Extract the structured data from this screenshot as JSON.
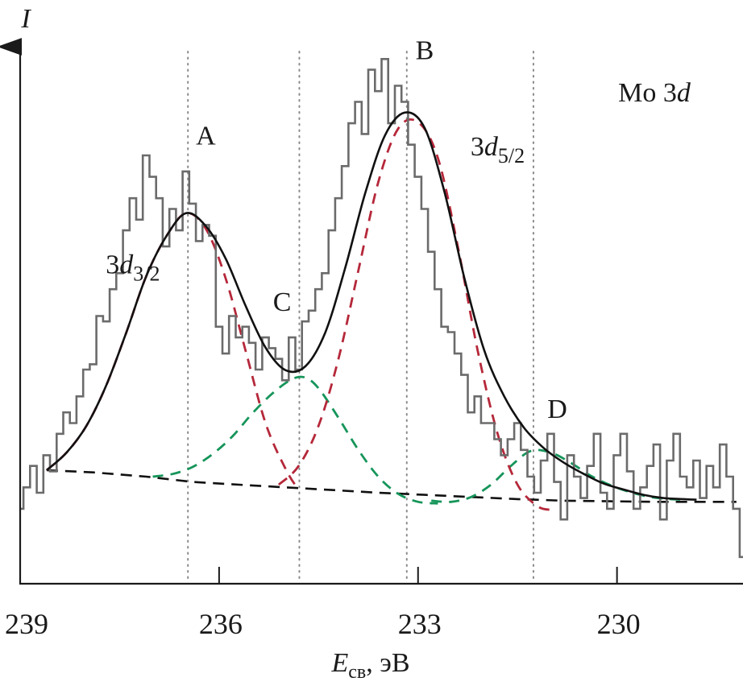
{
  "chart_data": {
    "type": "line",
    "title": "Mo 3d",
    "xlabel_main": "E",
    "xlabel_sub": "св",
    "xlabel_unit": ", эВ",
    "ylabel": "I",
    "xlim": [
      239,
      228.1
    ],
    "x_reversed": true,
    "ylim": [
      0,
      100
    ],
    "y_ticks_shown": false,
    "grid": false,
    "x_ticks": [
      239,
      236,
      233,
      230
    ],
    "x_tick_labels": [
      "239",
      "236",
      "233",
      "230"
    ],
    "colors": {
      "experimental": "#6b6b6b",
      "envelope": "#111111",
      "mo_component": "#b5283a",
      "second_component": "#16955a",
      "background": "#111111",
      "marker_line": "#8a8a8a"
    },
    "reference_lines": [
      {
        "x": 236.47,
        "label": "A"
      },
      {
        "x": 234.79,
        "label": "C"
      },
      {
        "x": 233.17,
        "label": "B"
      },
      {
        "x": 231.26,
        "label": "D"
      }
    ],
    "annotations": [
      {
        "text": "A",
        "x": 236.2,
        "y": 82
      },
      {
        "text": "B",
        "x": 232.9,
        "y": 98
      },
      {
        "text": "C",
        "x": 235.05,
        "y": 51
      },
      {
        "text": "D",
        "x": 230.9,
        "y": 31
      },
      {
        "text": "3d",
        "sub": "3/2",
        "x": 237.3,
        "y": 58
      },
      {
        "text": "3d",
        "sub": "5/2",
        "x": 231.8,
        "y": 80
      }
    ],
    "series": [
      {
        "name": "experimental",
        "style": "step",
        "x": [
          239.0,
          238.9,
          238.8,
          238.7,
          238.6,
          238.5,
          238.4,
          238.3,
          238.2,
          238.1,
          238.0,
          237.9,
          237.8,
          237.7,
          237.6,
          237.5,
          237.4,
          237.3,
          237.2,
          237.1,
          237.0,
          236.9,
          236.8,
          236.7,
          236.6,
          236.5,
          236.4,
          236.3,
          236.2,
          236.1,
          236.0,
          235.9,
          235.8,
          235.7,
          235.6,
          235.5,
          235.4,
          235.3,
          235.2,
          235.1,
          235.0,
          234.9,
          234.8,
          234.7,
          234.6,
          234.5,
          234.4,
          234.3,
          234.2,
          234.1,
          234.0,
          233.9,
          233.8,
          233.7,
          233.6,
          233.5,
          233.4,
          233.3,
          233.2,
          233.1,
          233.0,
          232.9,
          232.8,
          232.7,
          232.6,
          232.5,
          232.4,
          232.3,
          232.2,
          232.1,
          232.0,
          231.9,
          231.8,
          231.7,
          231.6,
          231.5,
          231.4,
          231.3,
          231.2,
          231.1,
          231.0,
          230.9,
          230.8,
          230.7,
          230.6,
          230.5,
          230.4,
          230.3,
          230.2,
          230.1,
          230.0,
          229.9,
          229.8,
          229.7,
          229.6,
          229.5,
          229.4,
          229.3,
          229.2,
          229.1,
          229.0,
          228.9,
          228.8,
          228.7,
          228.6,
          228.5,
          228.4,
          228.3,
          228.2,
          228.1
        ],
        "y": [
          14,
          18,
          22,
          17,
          24,
          21,
          28,
          32,
          30,
          35,
          40,
          41,
          50,
          49,
          55,
          58,
          66,
          72,
          68,
          80,
          76,
          72,
          63,
          70,
          66,
          77,
          71,
          64,
          67,
          65,
          48,
          43,
          50,
          46,
          48,
          45,
          40,
          46,
          44,
          42,
          38,
          46,
          40,
          49,
          51,
          55,
          58,
          66,
          72,
          78,
          86,
          90,
          84,
          96,
          92,
          98,
          86,
          93,
          90,
          82,
          76,
          70,
          62,
          55,
          48,
          47,
          43,
          39,
          32,
          35,
          30,
          30,
          27,
          24,
          27,
          30,
          25,
          20,
          17,
          23,
          28,
          19,
          12,
          24,
          20,
          16,
          22,
          28,
          17,
          14,
          24,
          28,
          21,
          14,
          18,
          22,
          26,
          12,
          23,
          28,
          20,
          18,
          23,
          16,
          22,
          18,
          26,
          20,
          14,
          5
        ]
      },
      {
        "name": "envelope",
        "style": "solid",
        "x": [
          238.6,
          238.3,
          238.0,
          237.7,
          237.4,
          237.1,
          236.8,
          236.5,
          236.2,
          235.9,
          235.6,
          235.3,
          235.0,
          234.7,
          234.4,
          234.1,
          233.8,
          233.5,
          233.2,
          232.9,
          232.6,
          232.3,
          232.0,
          231.7,
          231.4,
          231.1,
          230.8,
          230.5,
          230.2,
          229.9,
          229.6,
          229.3,
          229.0,
          228.8
        ],
        "y": [
          21.2,
          24.5,
          29.5,
          37.1,
          46.9,
          57.4,
          64.8,
          69.2,
          66.8,
          60.7,
          51.9,
          44.1,
          39.9,
          40.6,
          46.9,
          58.9,
          72.8,
          83.7,
          88.0,
          85.1,
          73.1,
          57.0,
          43.5,
          35.0,
          29.1,
          25.3,
          22.6,
          20.5,
          18.7,
          17.6,
          16.6,
          16.0,
          15.8,
          15.7
        ]
      },
      {
        "name": "component-A",
        "style": "dashed",
        "x": [
          238.6,
          238.3,
          238.0,
          237.7,
          237.4,
          237.1,
          236.8,
          236.5,
          236.2,
          235.9,
          235.6,
          235.3,
          235.0,
          234.8
        ],
        "y": [
          21.2,
          24.5,
          29.5,
          37.1,
          46.9,
          57.4,
          64.8,
          69.2,
          66.3,
          57.0,
          43.5,
          30.0,
          21.5,
          17.5
        ]
      },
      {
        "name": "component-B",
        "style": "dashed",
        "x": [
          235.1,
          234.8,
          234.5,
          234.2,
          233.9,
          233.6,
          233.3,
          233.0,
          232.7,
          232.4,
          232.1,
          231.8,
          231.5,
          231.2,
          231.0
        ],
        "y": [
          18.5,
          22.0,
          29.5,
          42.0,
          58.5,
          75.0,
          85.0,
          86.2,
          79.5,
          63.0,
          43.5,
          28.0,
          18.5,
          14.5,
          13.8
        ]
      },
      {
        "name": "component-C",
        "style": "dashed",
        "x": [
          237.0,
          236.7,
          236.4,
          236.1,
          235.8,
          235.5,
          235.2,
          234.9,
          234.7,
          234.5,
          234.2,
          233.9,
          233.6,
          233.3,
          233.0,
          232.7
        ],
        "y": [
          20.0,
          20.5,
          21.8,
          24.2,
          27.5,
          31.8,
          35.5,
          38.2,
          38.5,
          36.5,
          31.0,
          25.0,
          20.0,
          16.8,
          15.3,
          15.0
        ]
      },
      {
        "name": "component-D",
        "style": "dashed",
        "x": [
          232.8,
          232.5,
          232.2,
          231.9,
          231.6,
          231.3,
          231.0,
          230.7,
          230.4,
          230.1,
          229.8,
          229.5,
          229.2,
          229.0
        ],
        "y": [
          15.5,
          15.3,
          16.2,
          18.5,
          22.0,
          24.8,
          24.5,
          22.6,
          20.2,
          18.4,
          17.1,
          16.2,
          15.8,
          15.7
        ]
      },
      {
        "name": "background",
        "style": "dashed",
        "x": [
          238.6,
          237.9,
          237.1,
          236.4,
          235.7,
          235.0,
          234.3,
          233.6,
          232.9,
          232.2,
          231.5,
          230.8,
          230.1,
          229.4,
          228.7,
          228.2
        ],
        "y": [
          21.2,
          20.8,
          20.0,
          19.0,
          18.5,
          18.0,
          17.5,
          17.0,
          16.6,
          16.2,
          15.8,
          15.5,
          15.4,
          15.3,
          15.3,
          15.3
        ]
      }
    ]
  }
}
